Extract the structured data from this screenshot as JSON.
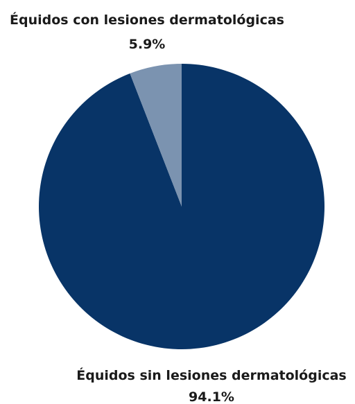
{
  "chart_data": {
    "type": "pie",
    "start_angle": "top, clockwise",
    "slices": [
      {
        "label": "Équidos sin lesiones dermatológicas",
        "value": 94.1,
        "value_label": "94.1%",
        "color": "#083467"
      },
      {
        "label": "Équidos con lesiones dermatológicas",
        "value": 5.9,
        "value_label": "5.9%",
        "color": "#7b93b0"
      }
    ]
  }
}
